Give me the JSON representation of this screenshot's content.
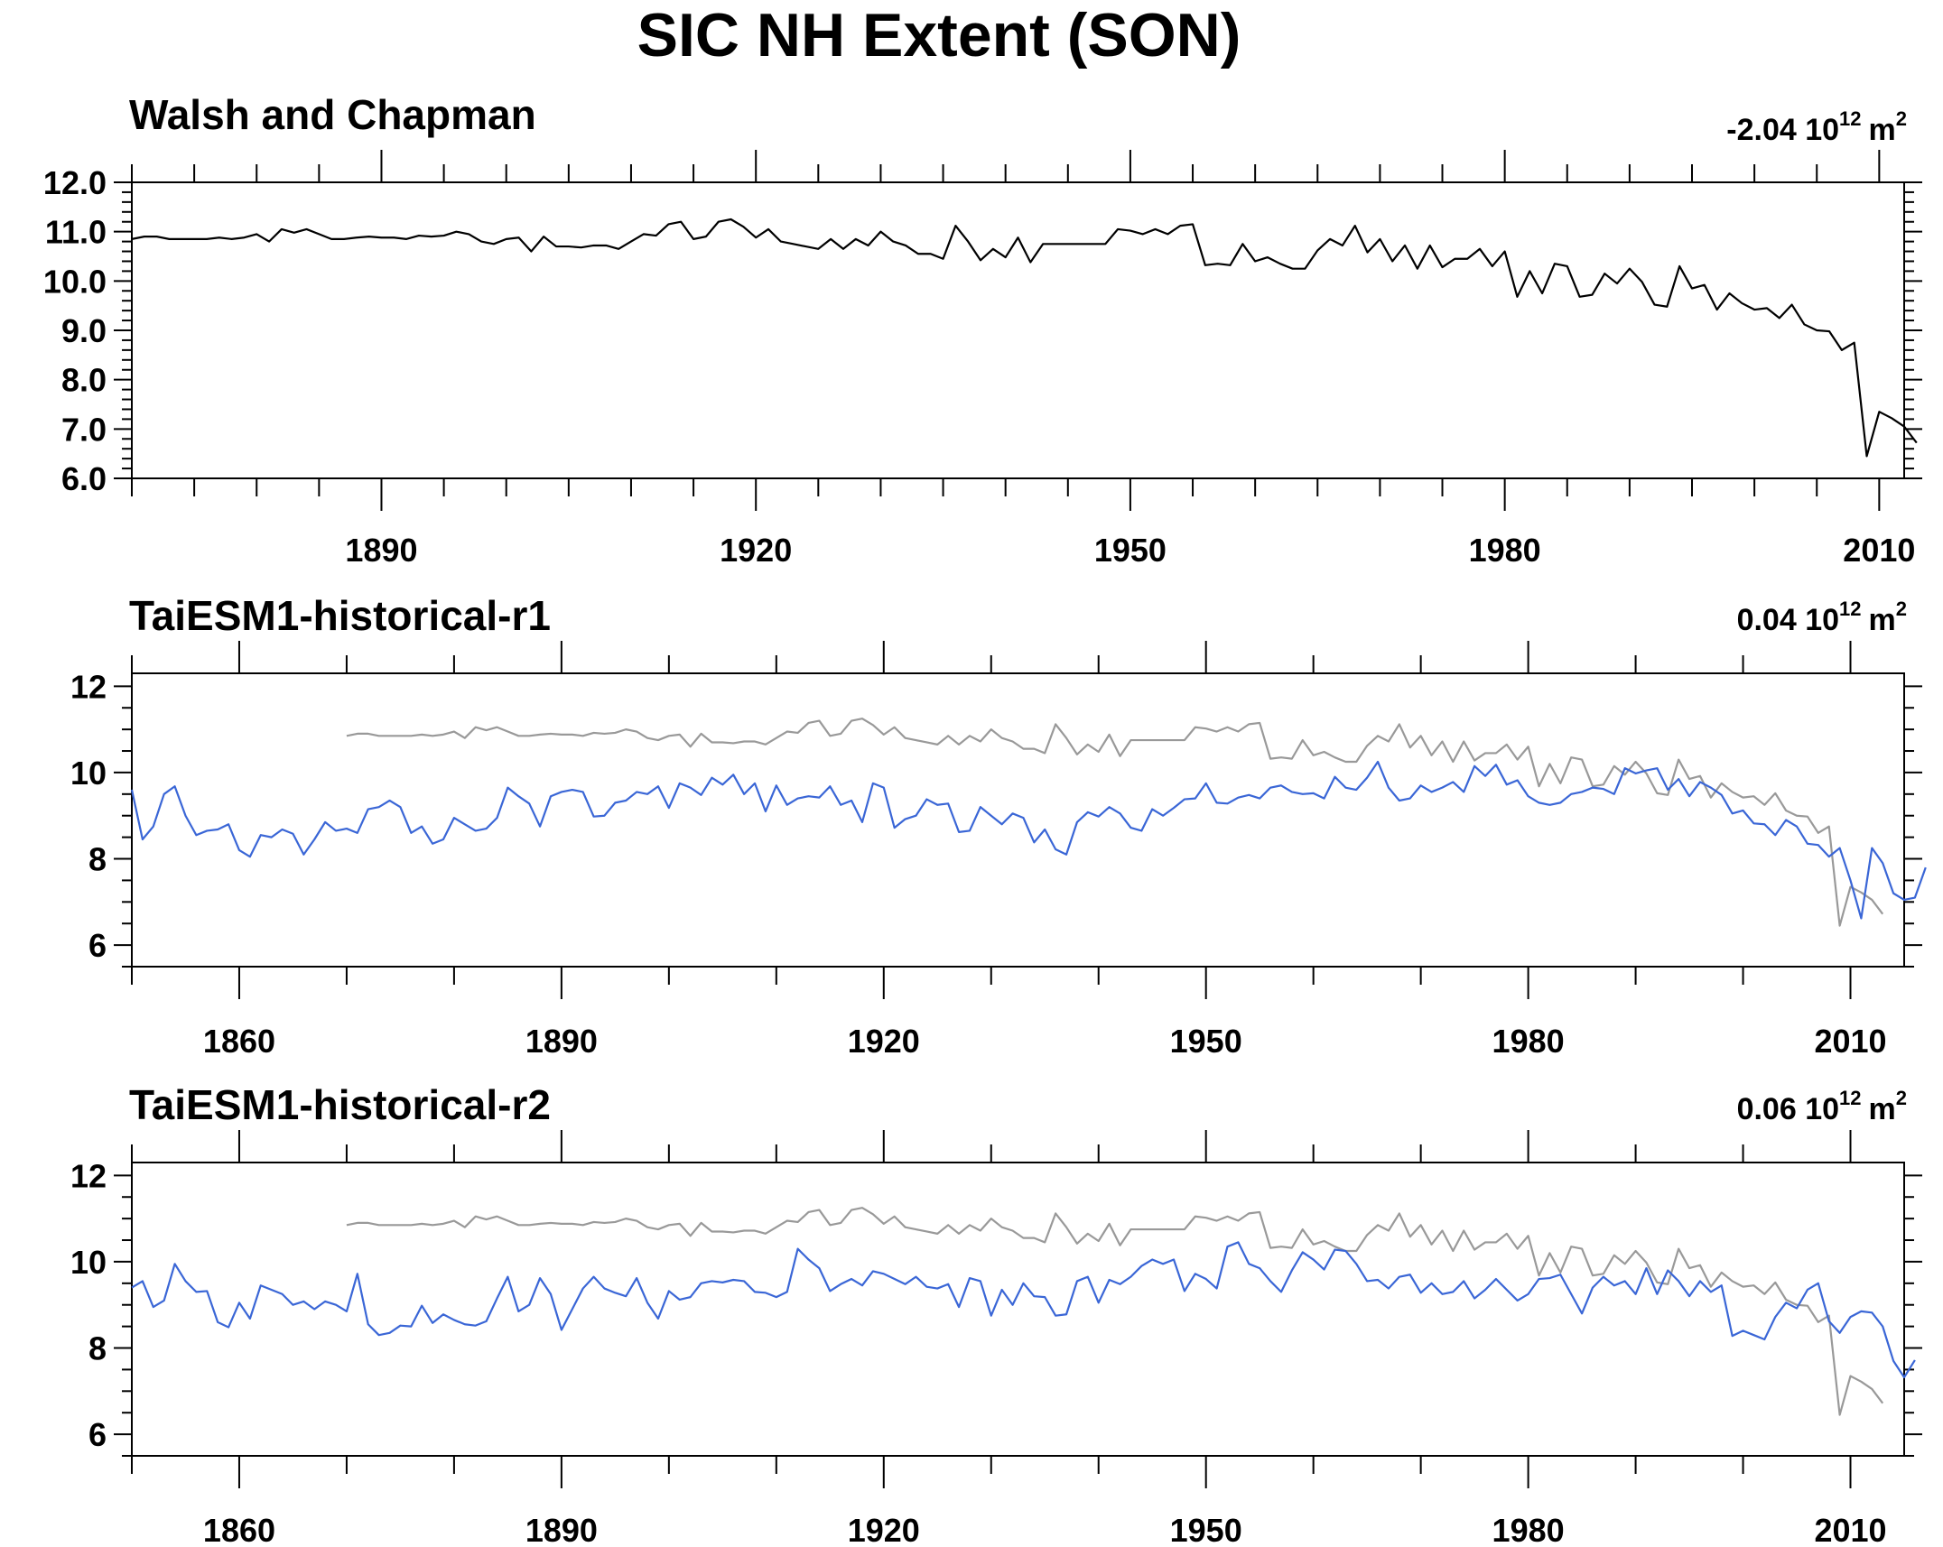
{
  "figure": {
    "title": "SIC NH Extent (SON)"
  },
  "chart_data": [
    {
      "type": "line",
      "title": "Walsh and Chapman",
      "trend_value": "-2.04 10",
      "trend_exp": "12",
      "trend_unit": "m",
      "trend_unit_exp": "2",
      "xlim": [
        1870,
        2012
      ],
      "ylim": [
        6.0,
        12.0
      ],
      "x_ticks": [
        1890,
        1920,
        1950,
        1980,
        2010
      ],
      "y_ticks": [
        "6.0",
        "7.0",
        "8.0",
        "9.0",
        "10.0",
        "11.0",
        "12.0"
      ],
      "series": [
        {
          "color": "#000000",
          "x_start": 1870,
          "values": [
            10.85,
            10.9,
            10.9,
            10.85,
            10.85,
            10.85,
            10.85,
            10.88,
            10.85,
            10.88,
            10.95,
            10.8,
            11.05,
            10.98,
            11.05,
            10.95,
            10.85,
            10.85,
            10.88,
            10.9,
            10.88,
            10.88,
            10.85,
            10.92,
            10.9,
            10.92,
            11.0,
            10.95,
            10.8,
            10.75,
            10.85,
            10.88,
            10.6,
            10.9,
            10.7,
            10.7,
            10.68,
            10.72,
            10.72,
            10.65,
            10.8,
            10.95,
            10.92,
            11.15,
            11.2,
            10.85,
            10.9,
            11.2,
            11.25,
            11.1,
            10.88,
            11.05,
            10.8,
            10.75,
            10.7,
            10.65,
            10.85,
            10.65,
            10.85,
            10.72,
            11.0,
            10.8,
            10.72,
            10.55,
            10.55,
            10.45,
            11.12,
            10.8,
            10.42,
            10.65,
            10.48,
            10.88,
            10.38,
            10.75,
            10.75,
            10.75,
            10.75,
            10.75,
            10.75,
            11.05,
            11.02,
            10.95,
            11.05,
            10.95,
            11.12,
            11.15,
            10.32,
            10.35,
            10.32,
            10.75,
            10.4,
            10.48,
            10.35,
            10.25,
            10.25,
            10.62,
            10.85,
            10.72,
            11.12,
            10.58,
            10.85,
            10.4,
            10.72,
            10.25,
            10.72,
            10.28,
            10.45,
            10.45,
            10.65,
            10.3,
            10.6,
            9.68,
            10.2,
            9.75,
            10.35,
            10.3,
            9.68,
            9.72,
            10.15,
            9.95,
            10.25,
            9.98,
            9.52,
            9.48,
            10.3,
            9.85,
            9.92,
            9.42,
            9.75,
            9.55,
            9.42,
            9.45,
            9.25,
            9.52,
            9.12,
            9.0,
            8.98,
            8.6,
            8.75,
            6.45,
            7.35,
            7.22,
            7.05,
            6.72
          ]
        }
      ]
    },
    {
      "type": "line",
      "title": "TaiESM1-historical-r1",
      "trend_value": "0.04 10",
      "trend_exp": "12",
      "trend_unit": "m",
      "trend_unit_exp": "2",
      "xlim": [
        1850,
        2015
      ],
      "ylim": [
        5.5,
        12.3
      ],
      "x_ticks": [
        1860,
        1890,
        1920,
        1950,
        1980,
        2010
      ],
      "y_ticks": [
        "6",
        "8",
        "10",
        "12"
      ],
      "series": [
        {
          "color": "#999999",
          "x_start": 1870,
          "values": [
            10.85,
            10.9,
            10.9,
            10.85,
            10.85,
            10.85,
            10.85,
            10.88,
            10.85,
            10.88,
            10.95,
            10.8,
            11.05,
            10.98,
            11.05,
            10.95,
            10.85,
            10.85,
            10.88,
            10.9,
            10.88,
            10.88,
            10.85,
            10.92,
            10.9,
            10.92,
            11.0,
            10.95,
            10.8,
            10.75,
            10.85,
            10.88,
            10.6,
            10.9,
            10.7,
            10.7,
            10.68,
            10.72,
            10.72,
            10.65,
            10.8,
            10.95,
            10.92,
            11.15,
            11.2,
            10.85,
            10.9,
            11.2,
            11.25,
            11.1,
            10.88,
            11.05,
            10.8,
            10.75,
            10.7,
            10.65,
            10.85,
            10.65,
            10.85,
            10.72,
            11.0,
            10.8,
            10.72,
            10.55,
            10.55,
            10.45,
            11.12,
            10.8,
            10.42,
            10.65,
            10.48,
            10.88,
            10.38,
            10.75,
            10.75,
            10.75,
            10.75,
            10.75,
            10.75,
            11.05,
            11.02,
            10.95,
            11.05,
            10.95,
            11.12,
            11.15,
            10.32,
            10.35,
            10.32,
            10.75,
            10.4,
            10.48,
            10.35,
            10.25,
            10.25,
            10.62,
            10.85,
            10.72,
            11.12,
            10.58,
            10.85,
            10.4,
            10.72,
            10.25,
            10.72,
            10.28,
            10.45,
            10.45,
            10.65,
            10.3,
            10.6,
            9.68,
            10.2,
            9.75,
            10.35,
            10.3,
            9.68,
            9.72,
            10.15,
            9.95,
            10.25,
            9.98,
            9.52,
            9.48,
            10.3,
            9.85,
            9.92,
            9.42,
            9.75,
            9.55,
            9.42,
            9.45,
            9.25,
            9.52,
            9.12,
            9.0,
            8.98,
            8.6,
            8.75,
            6.45,
            7.35,
            7.22,
            7.05,
            6.72
          ]
        },
        {
          "color": "#3a66d6",
          "x_start": 1850,
          "values": [
            9.6,
            8.45,
            8.75,
            9.5,
            9.68,
            9.0,
            8.55,
            8.65,
            8.68,
            8.8,
            8.2,
            8.05,
            8.55,
            8.5,
            8.68,
            8.58,
            8.1,
            8.45,
            8.85,
            8.65,
            8.7,
            8.6,
            9.15,
            9.2,
            9.35,
            9.2,
            8.6,
            8.75,
            8.35,
            8.45,
            8.95,
            8.8,
            8.65,
            8.7,
            8.95,
            9.65,
            9.45,
            9.28,
            8.75,
            9.45,
            9.55,
            9.6,
            9.55,
            8.98,
            9.0,
            9.3,
            9.35,
            9.55,
            9.5,
            9.68,
            9.18,
            9.75,
            9.65,
            9.48,
            9.88,
            9.72,
            9.95,
            9.5,
            9.75,
            9.1,
            9.7,
            9.25,
            9.4,
            9.45,
            9.42,
            9.68,
            9.25,
            9.35,
            8.85,
            9.75,
            9.65,
            8.72,
            8.92,
            9.0,
            9.38,
            9.25,
            9.28,
            8.62,
            8.65,
            9.2,
            9.0,
            8.8,
            9.05,
            8.95,
            8.38,
            8.68,
            8.22,
            8.1,
            8.85,
            9.08,
            8.98,
            9.2,
            9.05,
            8.72,
            8.65,
            9.15,
            9.0,
            9.18,
            9.38,
            9.4,
            9.75,
            9.3,
            9.28,
            9.42,
            9.48,
            9.4,
            9.65,
            9.7,
            9.55,
            9.5,
            9.52,
            9.4,
            9.9,
            9.65,
            9.6,
            9.88,
            10.25,
            9.65,
            9.35,
            9.4,
            9.7,
            9.55,
            9.65,
            9.78,
            9.55,
            10.15,
            9.92,
            10.18,
            9.72,
            9.82,
            9.45,
            9.3,
            9.25,
            9.3,
            9.5,
            9.55,
            9.65,
            9.62,
            9.5,
            10.1,
            9.98,
            10.05,
            10.1,
            9.6,
            9.85,
            9.45,
            9.78,
            9.65,
            9.48,
            9.05,
            9.12,
            8.82,
            8.8,
            8.55,
            8.9,
            8.75,
            8.35,
            8.32,
            8.05,
            8.25,
            7.5,
            6.62,
            8.25,
            7.9,
            7.2,
            7.05,
            7.1,
            7.8
          ]
        }
      ]
    },
    {
      "type": "line",
      "title": "TaiESM1-historical-r2",
      "trend_value": "0.06 10",
      "trend_exp": "12",
      "trend_unit": "m",
      "trend_unit_exp": "2",
      "xlim": [
        1850,
        2015
      ],
      "ylim": [
        5.5,
        12.3
      ],
      "x_ticks": [
        1860,
        1890,
        1920,
        1950,
        1980,
        2010
      ],
      "y_ticks": [
        "6",
        "8",
        "10",
        "12"
      ],
      "series": [
        {
          "color": "#999999",
          "x_start": 1870,
          "values": [
            10.85,
            10.9,
            10.9,
            10.85,
            10.85,
            10.85,
            10.85,
            10.88,
            10.85,
            10.88,
            10.95,
            10.8,
            11.05,
            10.98,
            11.05,
            10.95,
            10.85,
            10.85,
            10.88,
            10.9,
            10.88,
            10.88,
            10.85,
            10.92,
            10.9,
            10.92,
            11.0,
            10.95,
            10.8,
            10.75,
            10.85,
            10.88,
            10.6,
            10.9,
            10.7,
            10.7,
            10.68,
            10.72,
            10.72,
            10.65,
            10.8,
            10.95,
            10.92,
            11.15,
            11.2,
            10.85,
            10.9,
            11.2,
            11.25,
            11.1,
            10.88,
            11.05,
            10.8,
            10.75,
            10.7,
            10.65,
            10.85,
            10.65,
            10.85,
            10.72,
            11.0,
            10.8,
            10.72,
            10.55,
            10.55,
            10.45,
            11.12,
            10.8,
            10.42,
            10.65,
            10.48,
            10.88,
            10.38,
            10.75,
            10.75,
            10.75,
            10.75,
            10.75,
            10.75,
            11.05,
            11.02,
            10.95,
            11.05,
            10.95,
            11.12,
            11.15,
            10.32,
            10.35,
            10.32,
            10.75,
            10.4,
            10.48,
            10.35,
            10.25,
            10.25,
            10.62,
            10.85,
            10.72,
            11.12,
            10.58,
            10.85,
            10.4,
            10.72,
            10.25,
            10.72,
            10.28,
            10.45,
            10.45,
            10.65,
            10.3,
            10.6,
            9.68,
            10.2,
            9.75,
            10.35,
            10.3,
            9.68,
            9.72,
            10.15,
            9.95,
            10.25,
            9.98,
            9.52,
            9.48,
            10.3,
            9.85,
            9.92,
            9.42,
            9.75,
            9.55,
            9.42,
            9.45,
            9.25,
            9.52,
            9.12,
            9.0,
            8.98,
            8.6,
            8.75,
            6.45,
            7.35,
            7.22,
            7.05,
            6.72
          ]
        },
        {
          "color": "#3a66d6",
          "x_start": 1850,
          "values": [
            9.4,
            9.55,
            8.95,
            9.1,
            9.95,
            9.55,
            9.3,
            9.32,
            8.6,
            8.48,
            9.05,
            8.68,
            9.45,
            9.35,
            9.25,
            9.0,
            9.08,
            8.9,
            9.08,
            9.0,
            8.85,
            9.72,
            8.55,
            8.3,
            8.35,
            8.52,
            8.5,
            8.98,
            8.58,
            8.78,
            8.65,
            8.55,
            8.52,
            8.62,
            9.15,
            9.65,
            8.85,
            9.0,
            9.62,
            9.25,
            8.42,
            8.9,
            9.38,
            9.65,
            9.38,
            9.28,
            9.2,
            9.62,
            9.05,
            8.68,
            9.32,
            9.12,
            9.18,
            9.5,
            9.55,
            9.52,
            9.58,
            9.55,
            9.3,
            9.28,
            9.18,
            9.3,
            10.3,
            10.05,
            9.85,
            9.32,
            9.48,
            9.6,
            9.45,
            9.78,
            9.72,
            9.6,
            9.48,
            9.65,
            9.42,
            9.38,
            9.48,
            8.95,
            9.62,
            9.55,
            8.75,
            9.35,
            9.0,
            9.5,
            9.2,
            9.18,
            8.75,
            8.78,
            9.55,
            9.65,
            9.05,
            9.58,
            9.48,
            9.65,
            9.9,
            10.05,
            9.95,
            10.05,
            9.32,
            9.72,
            9.6,
            9.38,
            10.35,
            10.45,
            9.95,
            9.85,
            9.55,
            9.3,
            9.8,
            10.22,
            10.05,
            9.82,
            10.28,
            10.25,
            9.95,
            9.55,
            9.58,
            9.38,
            9.65,
            9.7,
            9.28,
            9.5,
            9.25,
            9.3,
            9.55,
            9.15,
            9.35,
            9.6,
            9.35,
            9.1,
            9.25,
            9.6,
            9.62,
            9.7,
            9.25,
            8.8,
            9.4,
            9.65,
            9.45,
            9.55,
            9.25,
            9.85,
            9.25,
            9.8,
            9.55,
            9.2,
            9.55,
            9.3,
            9.45,
            8.28,
            8.4,
            8.3,
            8.2,
            8.72,
            9.05,
            8.92,
            9.35,
            9.5,
            8.62,
            8.35,
            8.72,
            8.85,
            8.82,
            8.5,
            7.7,
            7.32,
            7.72
          ]
        }
      ]
    }
  ]
}
